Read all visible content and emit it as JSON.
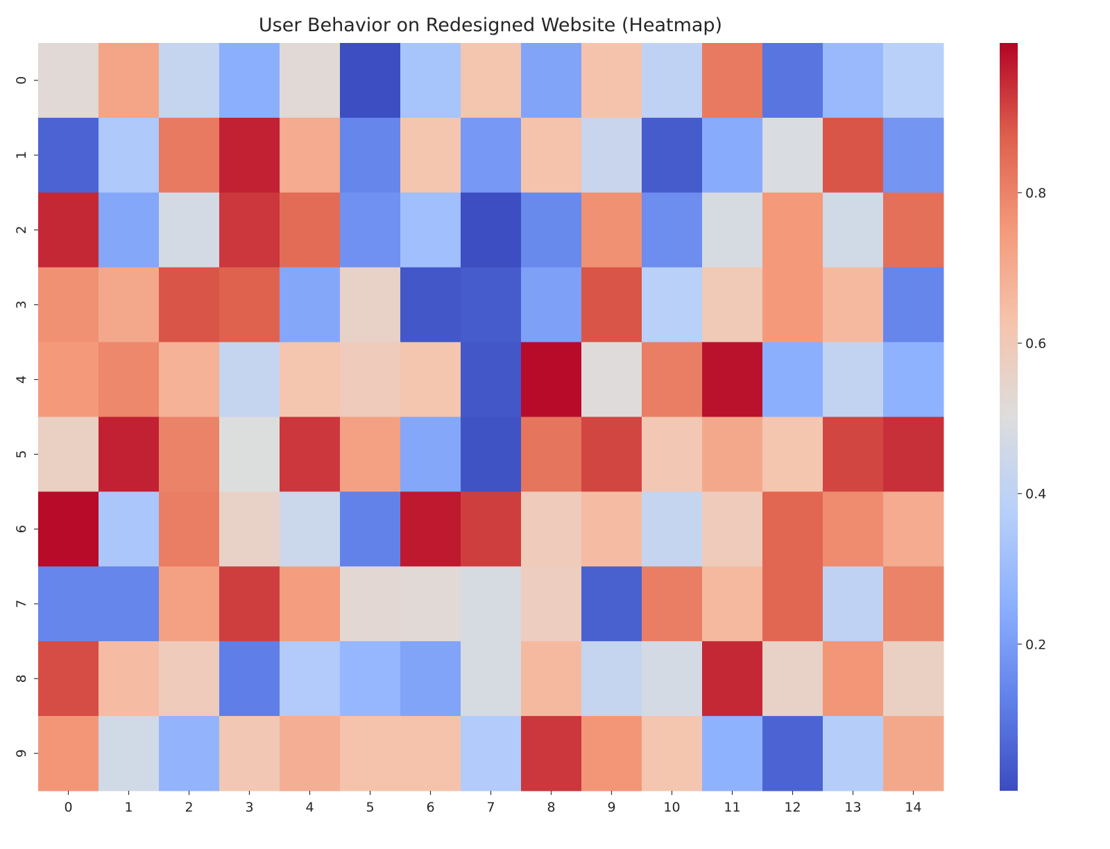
{
  "chart_data": {
    "type": "heatmap",
    "title": "User Behavior on Redesigned Website (Heatmap)",
    "xlabel": "",
    "ylabel": "",
    "colormap": "coolwarm",
    "vlim": [
      0.005,
      0.999
    ],
    "x_categories": [
      "0",
      "1",
      "2",
      "3",
      "4",
      "5",
      "6",
      "7",
      "8",
      "9",
      "10",
      "11",
      "12",
      "13",
      "14"
    ],
    "y_categories": [
      "0",
      "1",
      "2",
      "3",
      "4",
      "5",
      "6",
      "7",
      "8",
      "9"
    ],
    "colorbar_ticks": [
      "0.2",
      "0.4",
      "0.6",
      "0.8"
    ],
    "values": [
      [
        0.52,
        0.72,
        0.42,
        0.25,
        0.52,
        0.01,
        0.33,
        0.62,
        0.22,
        0.63,
        0.4,
        0.82,
        0.1,
        0.29,
        0.38
      ],
      [
        0.06,
        0.35,
        0.82,
        0.96,
        0.7,
        0.14,
        0.62,
        0.19,
        0.63,
        0.43,
        0.04,
        0.24,
        0.49,
        0.89,
        0.18
      ],
      [
        0.95,
        0.23,
        0.47,
        0.93,
        0.85,
        0.17,
        0.31,
        0.01,
        0.15,
        0.77,
        0.16,
        0.48,
        0.75,
        0.46,
        0.84
      ],
      [
        0.77,
        0.71,
        0.89,
        0.87,
        0.23,
        0.56,
        0.03,
        0.04,
        0.21,
        0.89,
        0.38,
        0.6,
        0.75,
        0.66,
        0.14
      ],
      [
        0.75,
        0.79,
        0.68,
        0.42,
        0.62,
        0.59,
        0.62,
        0.03,
        0.99,
        0.51,
        0.81,
        0.98,
        0.25,
        0.41,
        0.26
      ],
      [
        0.57,
        0.96,
        0.8,
        0.5,
        0.93,
        0.73,
        0.23,
        0.02,
        0.83,
        0.91,
        0.61,
        0.71,
        0.62,
        0.91,
        0.94
      ],
      [
        0.99,
        0.34,
        0.81,
        0.56,
        0.44,
        0.13,
        0.97,
        0.92,
        0.59,
        0.65,
        0.42,
        0.59,
        0.86,
        0.78,
        0.7
      ],
      [
        0.14,
        0.14,
        0.73,
        0.92,
        0.74,
        0.53,
        0.52,
        0.48,
        0.58,
        0.05,
        0.81,
        0.66,
        0.86,
        0.4,
        0.8
      ],
      [
        0.9,
        0.65,
        0.59,
        0.12,
        0.36,
        0.28,
        0.22,
        0.48,
        0.66,
        0.42,
        0.47,
        0.95,
        0.56,
        0.76,
        0.57
      ],
      [
        0.76,
        0.46,
        0.27,
        0.61,
        0.69,
        0.63,
        0.63,
        0.36,
        0.93,
        0.76,
        0.62,
        0.26,
        0.06,
        0.37,
        0.71
      ]
    ]
  }
}
